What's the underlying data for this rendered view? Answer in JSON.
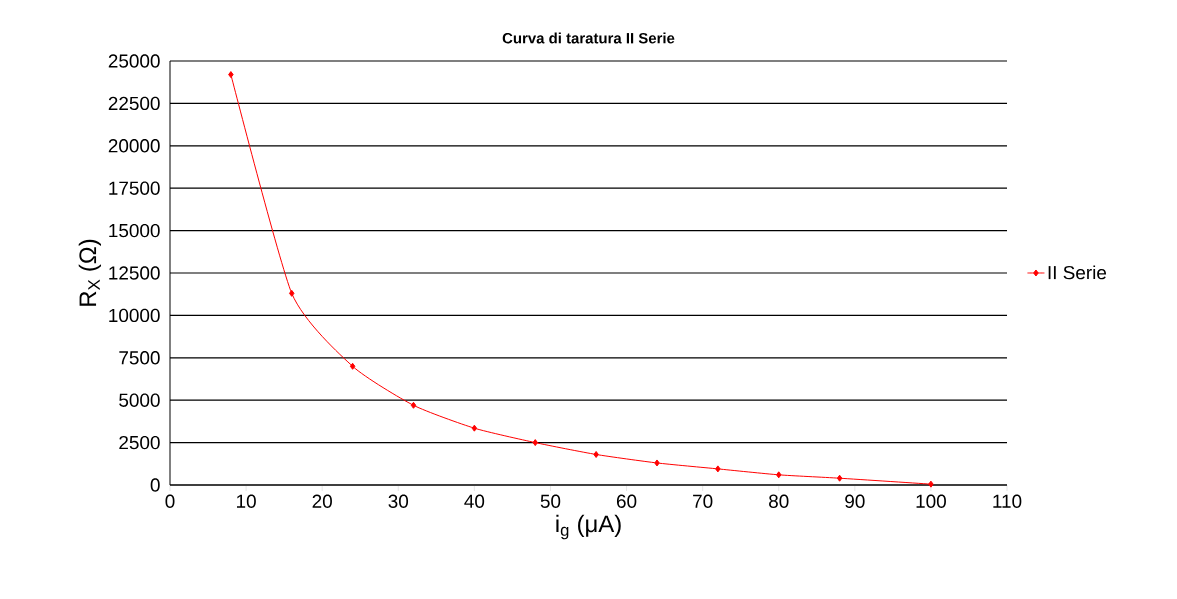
{
  "chart_data": {
    "type": "line",
    "title": "Curva di taratura II Serie",
    "xlabel": "i$_{g}$ (μA)",
    "ylabel": "R$_{X}$ (Ω)",
    "x": [
      8,
      16,
      24,
      32,
      40,
      48,
      56,
      64,
      72,
      80,
      88,
      100
    ],
    "series": [
      {
        "name": "II Serie",
        "color": "#ff0000",
        "values": [
          24200,
          11300,
          7000,
          4700,
          3350,
          2500,
          1800,
          1300,
          950,
          600,
          400,
          50
        ]
      }
    ],
    "xlim": [
      0,
      110
    ],
    "xticks": [
      0,
      10,
      20,
      30,
      40,
      50,
      60,
      70,
      80,
      90,
      100,
      110
    ],
    "ylim": [
      0,
      25000
    ],
    "yticks": [
      0,
      2500,
      5000,
      7500,
      10000,
      12500,
      15000,
      17500,
      20000,
      22500,
      25000
    ],
    "grid": "y",
    "legend": "right",
    "marker": "diamond",
    "line_style": "solid"
  }
}
